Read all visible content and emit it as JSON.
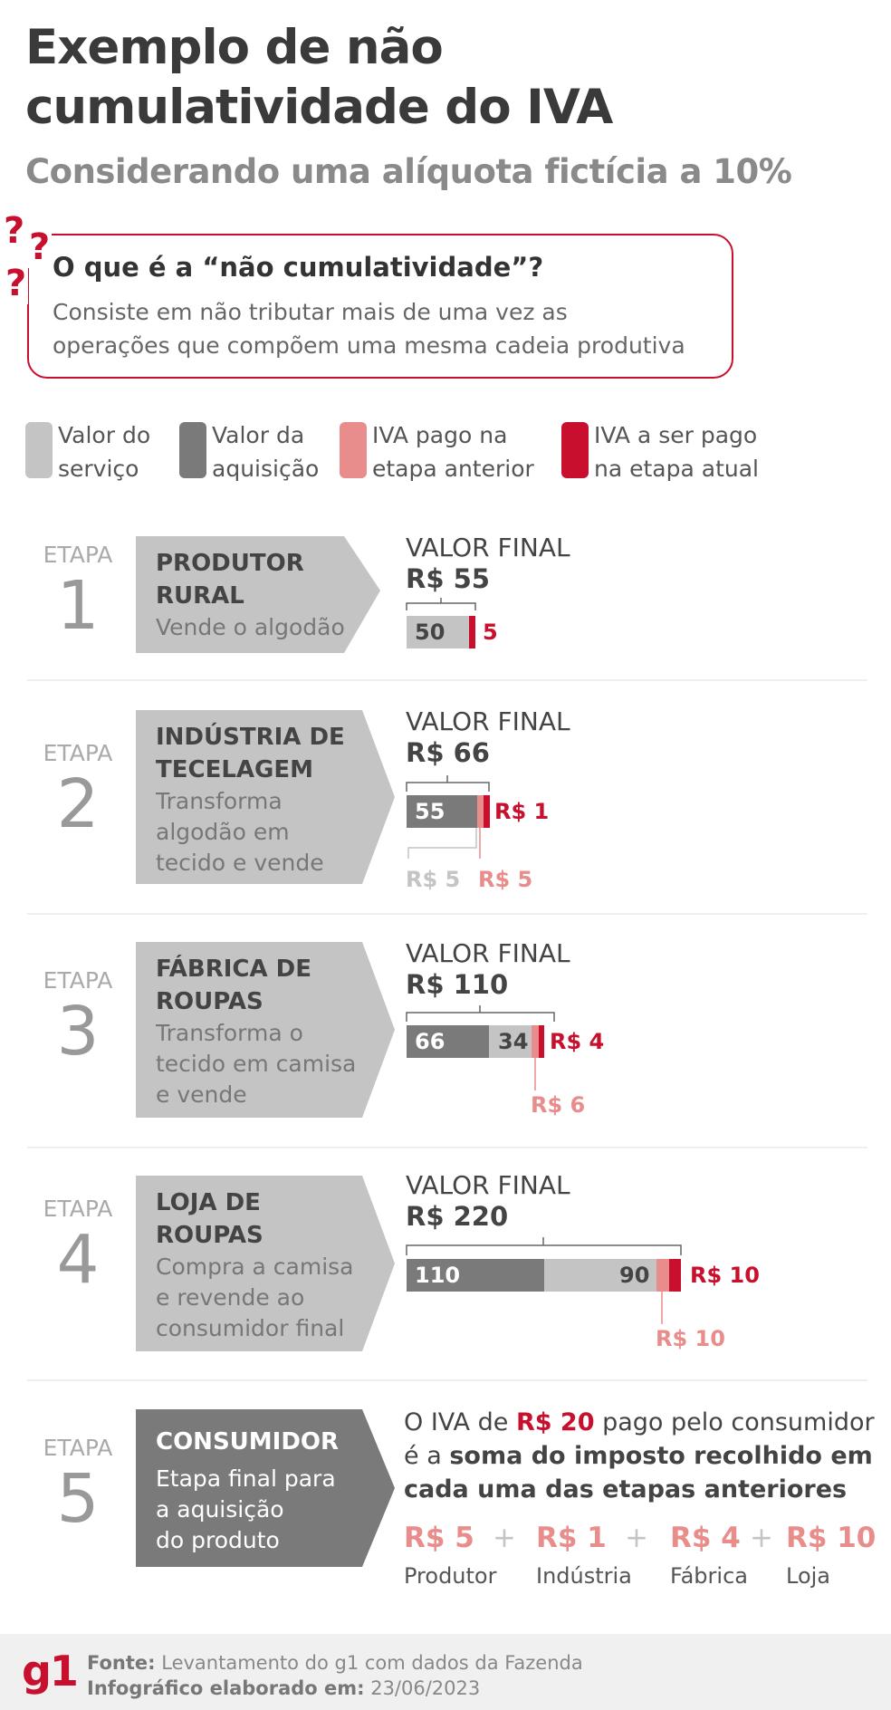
{
  "header": {
    "title_line1": "Exemplo de não",
    "title_line2": "cumulatividade do IVA",
    "subtitle": "Considerando uma alíquota fictícia a 10%"
  },
  "question": {
    "title": "O que é a “não cumulatividade”?",
    "text_line1": "Consiste em não tributar mais de uma vez as",
    "text_line2": "operações que compõem uma mesma cadeia produtiva",
    "mark": "?"
  },
  "colors": {
    "service": "#c4c4c4",
    "acquisition": "#7a7a7a",
    "prev_tax": "#e88d8b",
    "current_tax": "#c8102e"
  },
  "legend": [
    {
      "line1": "Valor do",
      "line2": "serviço"
    },
    {
      "line1": "Valor da",
      "line2": "aquisição"
    },
    {
      "line1": "IVA pago na",
      "line2": "etapa anterior"
    },
    {
      "line1": "IVA a ser pago",
      "line2": "na etapa atual"
    }
  ],
  "etapa_label": "ETAPA",
  "final_value_label": "VALOR FINAL",
  "stages": [
    {
      "number": "1",
      "name1": "PRODUTOR",
      "name2": "RURAL",
      "desc": [
        "Vende o algodão"
      ],
      "final_value": "R$ 55",
      "service_value": 50,
      "service_label": "50",
      "tax_label": "5",
      "tax_value": 5
    },
    {
      "number": "2",
      "name1": "INDÚSTRIA DE",
      "name2": "TECELAGEM",
      "desc": [
        "Transforma",
        "algodão em",
        "tecido e vende"
      ],
      "final_value": "R$ 66",
      "acquisition_value": 55,
      "acquisition_label": "55",
      "prev_tax_value": 5,
      "tax_label": "R$ 1",
      "tax_value": 1,
      "below_left": "R$ 5",
      "below_right": "R$ 5"
    },
    {
      "number": "3",
      "name1": "FÁBRICA DE",
      "name2": "ROUPAS",
      "desc": [
        "Transforma o",
        "tecido em camisa",
        "e vende"
      ],
      "final_value": "R$ 110",
      "acquisition_value": 66,
      "acquisition_label": "66",
      "service_value": 34,
      "service_label": "34",
      "prev_tax_value": 6,
      "tax_label": "R$ 4",
      "tax_value": 4,
      "below_right": "R$ 6"
    },
    {
      "number": "4",
      "name1": "LOJA DE",
      "name2": "ROUPAS",
      "desc": [
        "Compra a camisa",
        "e revende ao",
        "consumidor final"
      ],
      "final_value": "R$ 220",
      "acquisition_value": 110,
      "acquisition_label": "110",
      "service_value": 90,
      "service_label": "90",
      "prev_tax_value": 10,
      "tax_label": "R$ 10",
      "tax_value": 10,
      "below_right": "R$ 10"
    },
    {
      "number": "5",
      "name1": "CONSUMIDOR",
      "desc": [
        "Etapa final para",
        "a aquisição",
        "do produto"
      ]
    }
  ],
  "summary": {
    "line1_a": "O IVA de ",
    "line1_b": "R$ 20",
    "line1_c": " pago pelo consumidor",
    "line2_a": "é a ",
    "line2_b": "soma do imposto recolhido em",
    "line3": "cada uma das etapas anteriores",
    "terms": [
      {
        "value": "R$ 5",
        "label": "Produtor"
      },
      {
        "value": "R$ 1",
        "label": "Indústria"
      },
      {
        "value": "R$ 4",
        "label": "Fábrica"
      },
      {
        "value": "R$ 10",
        "label": "Loja"
      }
    ],
    "plus": "+"
  },
  "footer": {
    "logo": "g1",
    "source_label": "Fonte:",
    "source_text": " Levantamento do g1 com dados da Fazenda",
    "date_label": "Infográfico elaborado em:",
    "date_text": " 23/06/2023"
  }
}
